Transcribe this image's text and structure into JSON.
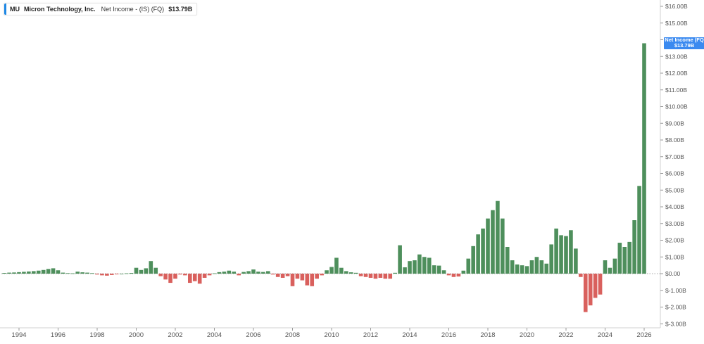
{
  "legend": {
    "ticker": "MU",
    "company": "Micron Technology, Inc.",
    "metric": "Net Income - (IS) (FQ)",
    "value": "$13.79B"
  },
  "last_value_tag": {
    "line1": "Net Income (FQ",
    "line2": "$13.79B"
  },
  "colors": {
    "positive": "#4e8f5c",
    "negative": "#d9605d",
    "accent": "#3b8af0",
    "axis_text": "#555555",
    "zero_line": "#888888"
  },
  "chart_data": {
    "type": "bar",
    "title": "",
    "xlabel": "",
    "ylabel": "",
    "ylim": [
      -3.0,
      16.5
    ],
    "y_unit": "billions USD",
    "grid": false,
    "zero_line": "dotted",
    "y_ticks": [
      "$16.00B",
      "$15.00B",
      "$14.00B",
      "$13.00B",
      "$12.00B",
      "$11.00B",
      "$10.00B",
      "$9.00B",
      "$8.00B",
      "$7.00B",
      "$6.00B",
      "$5.00B",
      "$4.00B",
      "$3.00B",
      "$2.00B",
      "$1.00B",
      "$0.00",
      "$-1.00B",
      "$-2.00B",
      "$-3.00B"
    ],
    "x_ticks": [
      "1994",
      "1996",
      "1998",
      "2000",
      "2002",
      "2004",
      "2006",
      "2008",
      "2010",
      "2012",
      "2014",
      "2016",
      "2018",
      "2020",
      "2022",
      "2024",
      "2026"
    ],
    "x_range": [
      1993.5,
      2027.0
    ],
    "series": [
      {
        "x": [
          1993.25,
          1993.5,
          1993.75,
          1994.0,
          1994.25,
          1994.5,
          1994.75,
          1995.0,
          1995.25,
          1995.5,
          1995.75,
          1996.0,
          1996.25,
          1996.5,
          1996.75,
          1997.0,
          1997.25,
          1997.5,
          1997.75,
          1998.0,
          1998.25,
          1998.5,
          1998.75,
          1999.0,
          1999.25,
          1999.5,
          1999.75,
          2000.0,
          2000.25,
          2000.5,
          2000.75,
          2001.0,
          2001.25,
          2001.5,
          2001.75,
          2002.0,
          2002.25,
          2002.5,
          2002.75,
          2003.0,
          2003.25,
          2003.5,
          2003.75,
          2004.0,
          2004.25,
          2004.5,
          2004.75,
          2005.0,
          2005.25,
          2005.5,
          2005.75,
          2006.0,
          2006.25,
          2006.5,
          2006.75,
          2007.0,
          2007.25,
          2007.5,
          2007.75,
          2008.0,
          2008.25,
          2008.5,
          2008.75,
          2009.0,
          2009.25,
          2009.5,
          2009.75,
          2010.0,
          2010.25,
          2010.5,
          2010.75,
          2011.0,
          2011.25,
          2011.5,
          2011.75,
          2012.0,
          2012.25,
          2012.5,
          2012.75,
          2013.0,
          2013.25,
          2013.5,
          2013.75,
          2014.0,
          2014.25,
          2014.5,
          2014.75,
          2015.0,
          2015.25,
          2015.5,
          2015.75,
          2016.0,
          2016.25,
          2016.5,
          2016.75,
          2017.0,
          2017.25,
          2017.5,
          2017.75,
          2018.0,
          2018.25,
          2018.5,
          2018.75,
          2019.0,
          2019.25,
          2019.5,
          2019.75,
          2020.0,
          2020.25,
          2020.5,
          2020.75,
          2021.0,
          2021.25,
          2021.5,
          2021.75,
          2022.0,
          2022.25,
          2022.5,
          2022.75,
          2023.0,
          2023.25,
          2023.5,
          2023.75,
          2024.0,
          2024.25,
          2024.5,
          2024.75,
          2025.0,
          2025.25,
          2025.5,
          2025.75,
          2026.0
        ],
        "values": [
          0.04,
          0.06,
          0.07,
          0.09,
          0.11,
          0.13,
          0.15,
          0.18,
          0.22,
          0.28,
          0.32,
          0.2,
          0.06,
          0.03,
          0.02,
          0.12,
          0.08,
          0.06,
          0.03,
          -0.05,
          -0.1,
          -0.12,
          -0.08,
          -0.04,
          0.0,
          0.02,
          0.04,
          0.35,
          0.22,
          0.32,
          0.75,
          0.35,
          -0.15,
          -0.35,
          -0.55,
          -0.3,
          -0.05,
          -0.1,
          -0.55,
          -0.45,
          -0.6,
          -0.25,
          -0.1,
          0.02,
          0.09,
          0.12,
          0.18,
          0.12,
          -0.1,
          0.1,
          0.15,
          0.25,
          0.12,
          0.1,
          0.15,
          -0.05,
          -0.2,
          -0.25,
          -0.15,
          -0.75,
          -0.3,
          -0.4,
          -0.7,
          -0.75,
          -0.3,
          -0.1,
          0.2,
          0.4,
          0.95,
          0.35,
          0.15,
          0.08,
          0.05,
          -0.15,
          -0.2,
          -0.25,
          -0.3,
          -0.25,
          -0.3,
          -0.3,
          0.05,
          1.7,
          0.38,
          0.75,
          0.8,
          1.15,
          1.0,
          0.95,
          0.5,
          0.48,
          0.2,
          -0.1,
          -0.2,
          -0.17,
          0.18,
          0.9,
          1.65,
          2.35,
          2.7,
          3.3,
          3.8,
          4.35,
          3.3,
          1.6,
          0.8,
          0.55,
          0.5,
          0.45,
          0.8,
          1.0,
          0.8,
          0.6,
          1.75,
          2.7,
          2.3,
          2.25,
          2.6,
          1.5,
          -0.2,
          -2.3,
          -1.9,
          -1.45,
          -1.25,
          0.8,
          0.35,
          0.9,
          1.85,
          1.6,
          1.9,
          3.2,
          5.25,
          13.79
        ]
      }
    ]
  }
}
